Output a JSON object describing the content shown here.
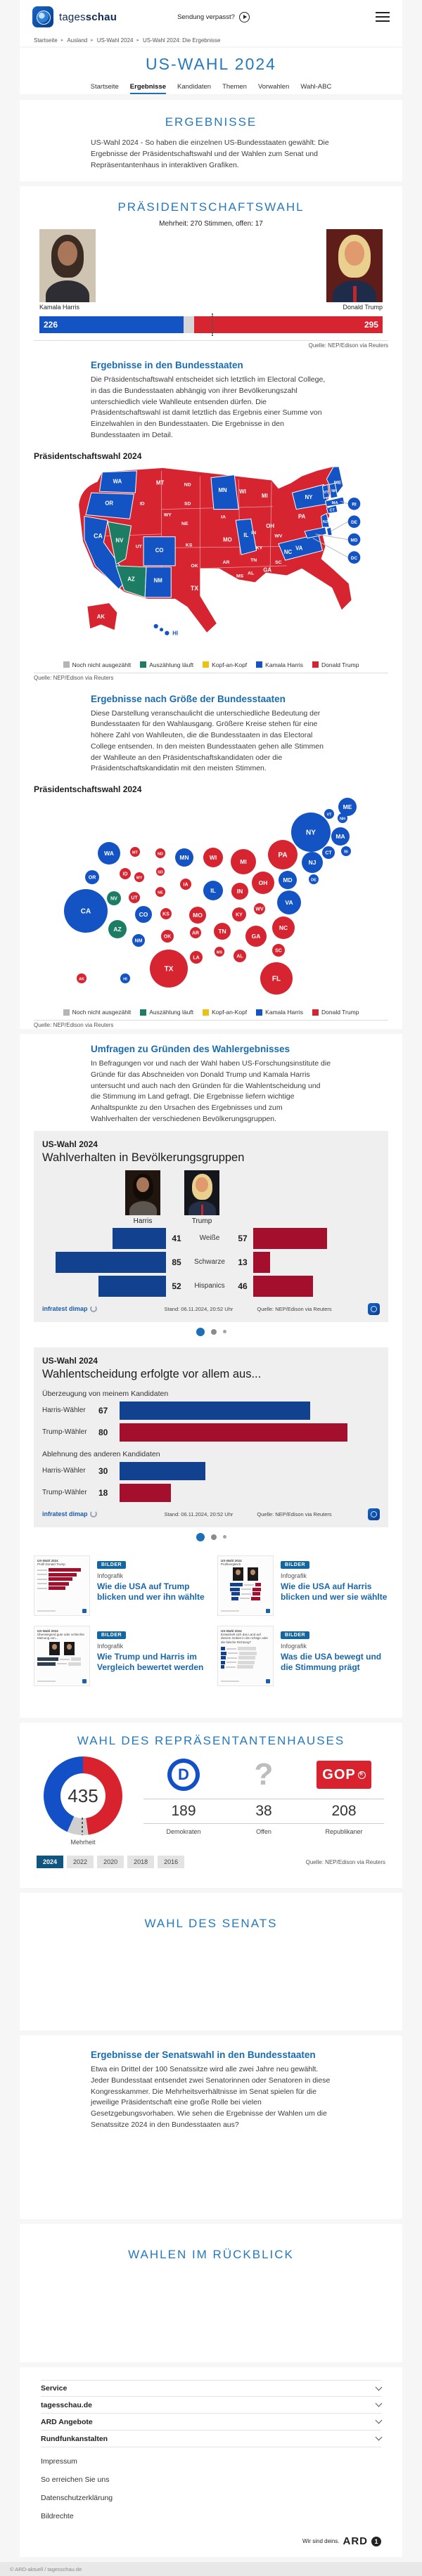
{
  "colors": {
    "harris": "#1353c4",
    "trump": "#d62430",
    "counting": "#1d7d64",
    "undecided": "#e9c215",
    "notcounted": "#b5b5b5",
    "chart_blue": "#12418f",
    "chart_red": "#a50f2e",
    "accent": "#1d6fb8"
  },
  "header": {
    "brand": "tagesschau",
    "verpasst": "Sendung verpasst?",
    "breadcrumb": [
      "Startseite",
      "Ausland",
      "US-Wahl 2024",
      "US-Wahl 2024: Die Ergebnisse"
    ],
    "title": "US-WAHL 2024",
    "tabs": [
      {
        "label": "Startseite",
        "active": false
      },
      {
        "label": "Ergebnisse",
        "active": true
      },
      {
        "label": "Kandidaten",
        "active": false
      },
      {
        "label": "Themen",
        "active": false
      },
      {
        "label": "Vorwahlen",
        "active": false
      },
      {
        "label": "Wahl-ABC",
        "active": false
      }
    ]
  },
  "results_intro": {
    "title": "ERGEBNISSE",
    "text": "US-Wahl 2024 - So haben die einzelnen US-Bundesstaaten gewählt: Die Ergebnisse der Präsidentschaftswahl und der Wahlen zum Senat und Repräsentantenhaus in interaktiven Grafiken."
  },
  "president": {
    "title": "PRÄSIDENTSCHAFTSWAHL",
    "majority_note": "Mehrheit: 270 Stimmen, offen: 17",
    "candidates": [
      {
        "name": "Kamala Harris"
      },
      {
        "name": "Donald Trump"
      }
    ],
    "electoral": {
      "harris": 226,
      "trump": 295,
      "open": 17,
      "majority": 270,
      "total": 538
    },
    "source": "Quelle: NEP/Edison via Reuters",
    "states_section": {
      "heading": "Ergebnisse in den Bundesstaaten",
      "text": "Die Präsidentschaftswahl entscheidet sich letztlich im Electoral College, in das die Bundesstaaten abhängig von ihrer Bevölkerungszahl unterschiedlich viele Wahlleute entsenden dürfen. Die Präsidentschaftswahl ist damit letztlich das Ergebnis einer Summe von Einzelwahlen in den Bundesstaaten. Die Ergebnisse in den Bundesstaaten im Detail.",
      "chart_label": "Präsidentschaftswahl 2024"
    },
    "size_section": {
      "heading": "Ergebnisse nach Größe der Bundesstaaten",
      "text": "Diese Darstellung veranschaulicht die unterschiedliche Bedeutung der Bundesstaaten für den Wahlausgang. Größere Kreise stehen für eine höhere Zahl von Wahlleuten, die die Bundesstaaten in das Electoral College entsenden. In den meisten Bundesstaaten gehen alle Stimmen der Wahlleute an den Präsidentschaftskandidaten oder die Präsidentschaftskandidatin mit den meisten Stimmen.",
      "chart_label": "Präsidentschaftswahl 2024"
    }
  },
  "polls": {
    "heading": "Umfragen zu Gründen des Wahlergebnisses",
    "text": "In Befragungen vor und nach der Wahl haben US-Forschungsinstitute die Gründe für das Abschneiden von Donald Trump und Kamala Harris untersucht und auch nach den Gründen für die Wahlentscheidung und die Stimmung im Land gefragt. Die Ergebnisse liefern wichtige Anhaltspunkte zu den Ursachen des Ergebnisses und zum Wahlverhalten der verschiedenen Bevölkerungsgruppen."
  },
  "teasers": [
    {
      "badge": "BILDER",
      "kicker": "Infografik",
      "title": "Wie die USA auf Trump blicken und wer ihn wählte",
      "thumb": {
        "kicker": "US-Wahl 2024",
        "title": "Profil Donald Trump",
        "type": "bars-red"
      }
    },
    {
      "badge": "BILDER",
      "kicker": "Infografik",
      "title": "Wie die USA auf Harris blicken und wer sie wählte",
      "thumb": {
        "kicker": "US-Wahl 2024",
        "title": "Profilvergleich",
        "type": "compare"
      }
    },
    {
      "badge": "BILDER",
      "kicker": "Infografik",
      "title": "Wie Trump und Harris im Vergleich bewertet werden",
      "thumb": {
        "kicker": "US-Wahl 2024",
        "title": "Überwiegend gute oder schlechte Meinung von...",
        "type": "opinion"
      }
    },
    {
      "badge": "BILDER",
      "kicker": "Infografik",
      "title": "Was die USA bewegt und die Stimmung prägt",
      "thumb": {
        "kicker": "US-Wahl 2024",
        "title": "Entwickelt sich das Land auf diesem Gebiet in die richtige oder die falsche Richtung?",
        "type": "direction"
      }
    }
  ],
  "house": {
    "title": "WAHL DES REPRÄSENTANTENHAUSES"
  },
  "senate": {
    "title": "WAHL DES SENATS",
    "states_section": {
      "heading": "Ergebnisse der Senatswahl in den Bundesstaaten",
      "text": "Etwa ein Drittel der 100 Senatssitze wird alle zwei Jahre neu gewählt. Jeder Bundesstaat entsendet zwei Senatorinnen oder Senatoren in diese Kongresskammer. Die Mehrheitsverhältnisse im Senat spielen für die jeweilige Präsidentschaft eine große Rolle bei vielen Gesetzgebungsvorhaben. Wie sehen die Ergebnisse der Wahlen um die Senatssitze 2024 in den Bundesstaaten aus?"
    }
  },
  "review": {
    "title": "WAHLEN IM RÜCKBLICK"
  },
  "footer": {
    "accordions": [
      "Service",
      "tagesschau.de",
      "ARD Angebote",
      "Rundfunkanstalten"
    ],
    "links": [
      "Impressum",
      "So erreichen Sie uns",
      "Datenschutzerklärung",
      "Bildrechte"
    ],
    "ard_tagline": "Wir sind deins.",
    "ard_brand": "ARD",
    "copyright": "© ARD-aktuell / tagesschau.de"
  },
  "chart_data": [
    {
      "type": "map",
      "title": "Präsidentschaftswahl 2024",
      "legend": [
        {
          "key": "notcounted",
          "label": "Noch nicht ausgezählt"
        },
        {
          "key": "counting",
          "label": "Auszählung läuft"
        },
        {
          "key": "undecided",
          "label": "Kopf-an-Kopf"
        },
        {
          "key": "harris",
          "label": "Kamala Harris"
        },
        {
          "key": "trump",
          "label": "Donald Trump"
        }
      ],
      "source": "Quelle: NEP/Edison via Reuters",
      "states": {
        "WA": "harris",
        "OR": "harris",
        "CA": "harris",
        "NV": "counting",
        "AZ": "counting",
        "NM": "harris",
        "CO": "harris",
        "MN": "harris",
        "IL": "harris",
        "VA": "harris",
        "NY": "harris",
        "NJ": "harris",
        "MD": "harris",
        "DE": "harris",
        "CT": "harris",
        "RI": "harris",
        "MA": "harris",
        "VT": "harris",
        "NH": "harris",
        "ME": "harris",
        "HI": "harris",
        "DC": "harris",
        "ID": "trump",
        "MT": "trump",
        "WY": "trump",
        "ND": "trump",
        "SD": "trump",
        "NE": "trump",
        "KS": "trump",
        "OK": "trump",
        "TX": "trump",
        "UT": "trump",
        "IA": "trump",
        "MO": "trump",
        "AR": "trump",
        "LA": "trump",
        "WI": "trump",
        "MI": "trump",
        "IN": "trump",
        "OH": "trump",
        "KY": "trump",
        "TN": "trump",
        "MS": "trump",
        "AL": "trump",
        "GA": "trump",
        "FL": "trump",
        "SC": "trump",
        "NC": "trump",
        "WV": "trump",
        "PA": "trump",
        "AK": "trump"
      }
    },
    {
      "type": "bubble-cartogram",
      "title": "Präsidentschaftswahl 2024",
      "source": "Quelle: NEP/Edison via Reuters",
      "bubbles": [
        {
          "s": "ME",
          "x": 404,
          "y": 14,
          "r": 13,
          "p": "harris"
        },
        {
          "s": "VT",
          "x": 378,
          "y": 24,
          "r": 7,
          "p": "harris"
        },
        {
          "s": "NH",
          "x": 397,
          "y": 30,
          "r": 7,
          "p": "harris"
        },
        {
          "s": "NY",
          "x": 352,
          "y": 50,
          "r": 28,
          "p": "harris"
        },
        {
          "s": "MA",
          "x": 394,
          "y": 56,
          "r": 13,
          "p": "harris"
        },
        {
          "s": "CT",
          "x": 377,
          "y": 79,
          "r": 9,
          "p": "harris"
        },
        {
          "s": "RI",
          "x": 402,
          "y": 77,
          "r": 7,
          "p": "harris"
        },
        {
          "s": "WA",
          "x": 65,
          "y": 80,
          "r": 16,
          "p": "harris"
        },
        {
          "s": "MT",
          "x": 102,
          "y": 78,
          "r": 7,
          "p": "trump"
        },
        {
          "s": "ND",
          "x": 138,
          "y": 80,
          "r": 7,
          "p": "trump"
        },
        {
          "s": "MN",
          "x": 172,
          "y": 86,
          "r": 13,
          "p": "harris"
        },
        {
          "s": "WI",
          "x": 213,
          "y": 86,
          "r": 14,
          "p": "trump"
        },
        {
          "s": "MI",
          "x": 256,
          "y": 92,
          "r": 18,
          "p": "trump"
        },
        {
          "s": "PA",
          "x": 312,
          "y": 82,
          "r": 21,
          "p": "trump"
        },
        {
          "s": "NJ",
          "x": 354,
          "y": 93,
          "r": 15,
          "p": "harris"
        },
        {
          "s": "OR",
          "x": 41,
          "y": 114,
          "r": 10,
          "p": "harris"
        },
        {
          "s": "ID",
          "x": 88,
          "y": 109,
          "r": 8,
          "p": "trump"
        },
        {
          "s": "WY",
          "x": 108,
          "y": 114,
          "r": 7,
          "p": "trump"
        },
        {
          "s": "SD",
          "x": 138,
          "y": 106,
          "r": 6,
          "p": "trump"
        },
        {
          "s": "IA",
          "x": 174,
          "y": 124,
          "r": 8,
          "p": "trump"
        },
        {
          "s": "IL",
          "x": 213,
          "y": 133,
          "r": 14,
          "p": "harris"
        },
        {
          "s": "IN",
          "x": 251,
          "y": 134,
          "r": 12,
          "p": "trump"
        },
        {
          "s": "OH",
          "x": 284,
          "y": 122,
          "r": 16,
          "p": "trump"
        },
        {
          "s": "MD",
          "x": 319,
          "y": 118,
          "r": 13,
          "p": "harris"
        },
        {
          "s": "DE",
          "x": 356,
          "y": 117,
          "r": 7,
          "p": "harris"
        },
        {
          "s": "NE",
          "x": 138,
          "y": 135,
          "r": 7,
          "p": "trump"
        },
        {
          "s": "UT",
          "x": 101,
          "y": 143,
          "r": 8,
          "p": "trump"
        },
        {
          "s": "NV",
          "x": 72,
          "y": 144,
          "r": 10,
          "p": "counting"
        },
        {
          "s": "CA",
          "x": 32,
          "y": 162,
          "r": 31,
          "p": "harris"
        },
        {
          "s": "CO",
          "x": 114,
          "y": 167,
          "r": 12,
          "p": "harris"
        },
        {
          "s": "KS",
          "x": 146,
          "y": 166,
          "r": 8,
          "p": "trump"
        },
        {
          "s": "MO",
          "x": 191,
          "y": 168,
          "r": 12,
          "p": "trump"
        },
        {
          "s": "KY",
          "x": 250,
          "y": 167,
          "r": 10,
          "p": "trump"
        },
        {
          "s": "WV",
          "x": 279,
          "y": 159,
          "r": 8,
          "p": "trump"
        },
        {
          "s": "VA",
          "x": 321,
          "y": 150,
          "r": 17,
          "p": "harris"
        },
        {
          "s": "AZ",
          "x": 77,
          "y": 188,
          "r": 13,
          "p": "counting"
        },
        {
          "s": "NM",
          "x": 107,
          "y": 204,
          "r": 9,
          "p": "harris"
        },
        {
          "s": "OK",
          "x": 148,
          "y": 198,
          "r": 9,
          "p": "trump"
        },
        {
          "s": "AR",
          "x": 188,
          "y": 193,
          "r": 8,
          "p": "trump"
        },
        {
          "s": "TN",
          "x": 226,
          "y": 191,
          "r": 12,
          "p": "trump"
        },
        {
          "s": "NC",
          "x": 313,
          "y": 186,
          "r": 16,
          "p": "trump"
        },
        {
          "s": "GA",
          "x": 274,
          "y": 198,
          "r": 15,
          "p": "trump"
        },
        {
          "s": "SC",
          "x": 306,
          "y": 218,
          "r": 9,
          "p": "trump"
        },
        {
          "s": "MS",
          "x": 222,
          "y": 220,
          "r": 7,
          "p": "trump"
        },
        {
          "s": "AL",
          "x": 251,
          "y": 226,
          "r": 9,
          "p": "trump"
        },
        {
          "s": "LA",
          "x": 189,
          "y": 228,
          "r": 9,
          "p": "trump"
        },
        {
          "s": "TX",
          "x": 150,
          "y": 244,
          "r": 27,
          "p": "trump"
        },
        {
          "s": "FL",
          "x": 303,
          "y": 258,
          "r": 23,
          "p": "trump"
        },
        {
          "s": "AK",
          "x": 26,
          "y": 258,
          "r": 7,
          "p": "trump"
        },
        {
          "s": "HI",
          "x": 88,
          "y": 258,
          "r": 7,
          "p": "harris"
        }
      ]
    },
    {
      "type": "bar",
      "kicker": "US-Wahl 2024",
      "title": "Wahlverhalten in Bevölkerungsgruppen",
      "columns": [
        "Harris",
        "Trump"
      ],
      "categories": [
        "Weiße",
        "Schwarze",
        "Hispanics"
      ],
      "series": [
        {
          "name": "Harris",
          "values": [
            41,
            85,
            52
          ]
        },
        {
          "name": "Trump",
          "values": [
            57,
            13,
            46
          ]
        }
      ],
      "stand": "Stand: 06.11.2024, 20:52 Uhr",
      "source": "Quelle: NEP/Edison via Reuters",
      "brand": "infratest dimap"
    },
    {
      "type": "bar",
      "kicker": "US-Wahl 2024",
      "title": "Wahlentscheidung erfolgte vor allem aus...",
      "groups": [
        {
          "label": "Überzeugung von meinem Kandidaten",
          "bars": [
            {
              "label": "Harris-Wähler",
              "value": 67,
              "p": "chart_blue"
            },
            {
              "label": "Trump-Wähler",
              "value": 80,
              "p": "chart_red"
            }
          ]
        },
        {
          "label": "Ablehnung des anderen Kandidaten",
          "bars": [
            {
              "label": "Harris-Wähler",
              "value": 30,
              "p": "chart_blue"
            },
            {
              "label": "Trump-Wähler",
              "value": 18,
              "p": "chart_red"
            }
          ]
        }
      ],
      "stand": "Stand: 06.11.2024, 20:52 Uhr",
      "source": "Quelle: NEP/Edison via Reuters",
      "brand": "infratest dimap"
    },
    {
      "type": "donut",
      "total": 435,
      "total_label": "Mehrheit",
      "segments": [
        {
          "label": "Demokraten",
          "value": 189,
          "color": "#1350c8"
        },
        {
          "label": "Offen",
          "value": 38,
          "color": "#cfcfcf"
        },
        {
          "label": "Republikaner",
          "value": 208,
          "color": "#d8232e"
        }
      ],
      "years": [
        "2024",
        "2022",
        "2020",
        "2018",
        "2016"
      ],
      "active_year": "2024",
      "source": "Quelle: NEP/Edison via Reuters"
    }
  ]
}
